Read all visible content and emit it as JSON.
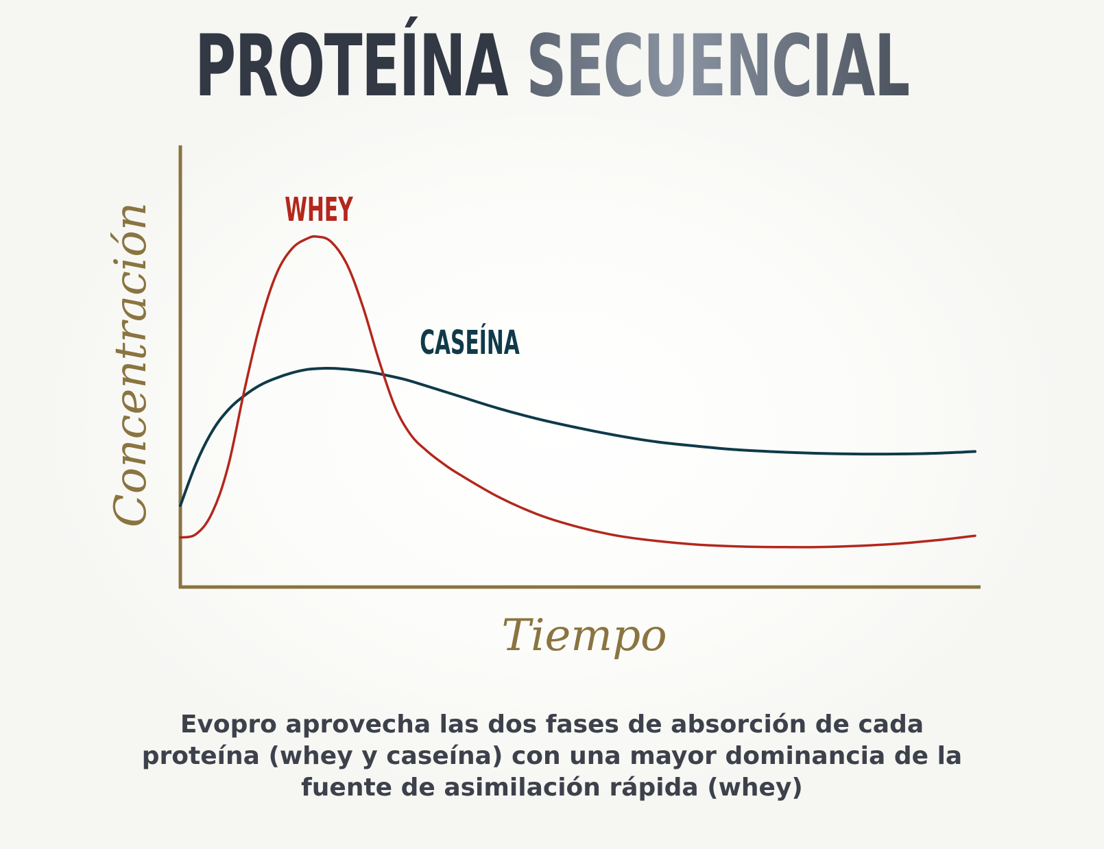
{
  "title": {
    "part1": "PROTEÍNA",
    "part2": "SECUENCIAL"
  },
  "chart_data": {
    "type": "line",
    "xlabel": "Tiempo",
    "ylabel": "Concentración",
    "xlim": [
      0,
      100
    ],
    "ylim": [
      0,
      100
    ],
    "grid": false,
    "colors": {
      "axis": "#8a7440",
      "whey": "#b3271c",
      "caseina": "#0f3a49"
    },
    "series": [
      {
        "name": "WHEY",
        "x": [
          0,
          2,
          4,
          6,
          8,
          10,
          12,
          14,
          16,
          17.3,
          19,
          21,
          23,
          25,
          27,
          29,
          31,
          33,
          35,
          40,
          45,
          50,
          55,
          60,
          65,
          70,
          75,
          80,
          85,
          90,
          95,
          100
        ],
        "y": [
          14,
          15,
          21,
          34,
          55,
          74,
          88,
          95.5,
          98.5,
          99,
          97.5,
          91,
          79,
          64,
          51,
          43,
          38.5,
          35,
          32,
          25.5,
          20.5,
          17,
          14.5,
          13,
          12,
          11.5,
          11.3,
          11.3,
          11.6,
          12.2,
          13.2,
          14.5
        ]
      },
      {
        "name": "CASEÍNA",
        "x": [
          0,
          2,
          4,
          6,
          8,
          10,
          12,
          14,
          16,
          18,
          20,
          22,
          24,
          26,
          28,
          30,
          35,
          40,
          45,
          50,
          55,
          60,
          65,
          70,
          75,
          80,
          85,
          90,
          95,
          100
        ],
        "y": [
          23,
          35,
          44,
          50,
          54,
          57,
          59,
          60.5,
          61.5,
          61.8,
          61.7,
          61.3,
          60.7,
          59.8,
          58.8,
          57.5,
          54,
          50.5,
          47.5,
          45,
          42.8,
          41,
          39.8,
          38.8,
          38.2,
          37.8,
          37.6,
          37.6,
          37.8,
          38.3
        ]
      }
    ],
    "series_labels": [
      "WHEY",
      "CASEÍNA"
    ]
  },
  "caption": {
    "line1": "Evopro aprovecha las dos fases de absorción de cada",
    "line2": "proteína (whey y caseína) con una mayor dominancia de la",
    "line3": "fuente de asimilación rápida (whey)"
  }
}
